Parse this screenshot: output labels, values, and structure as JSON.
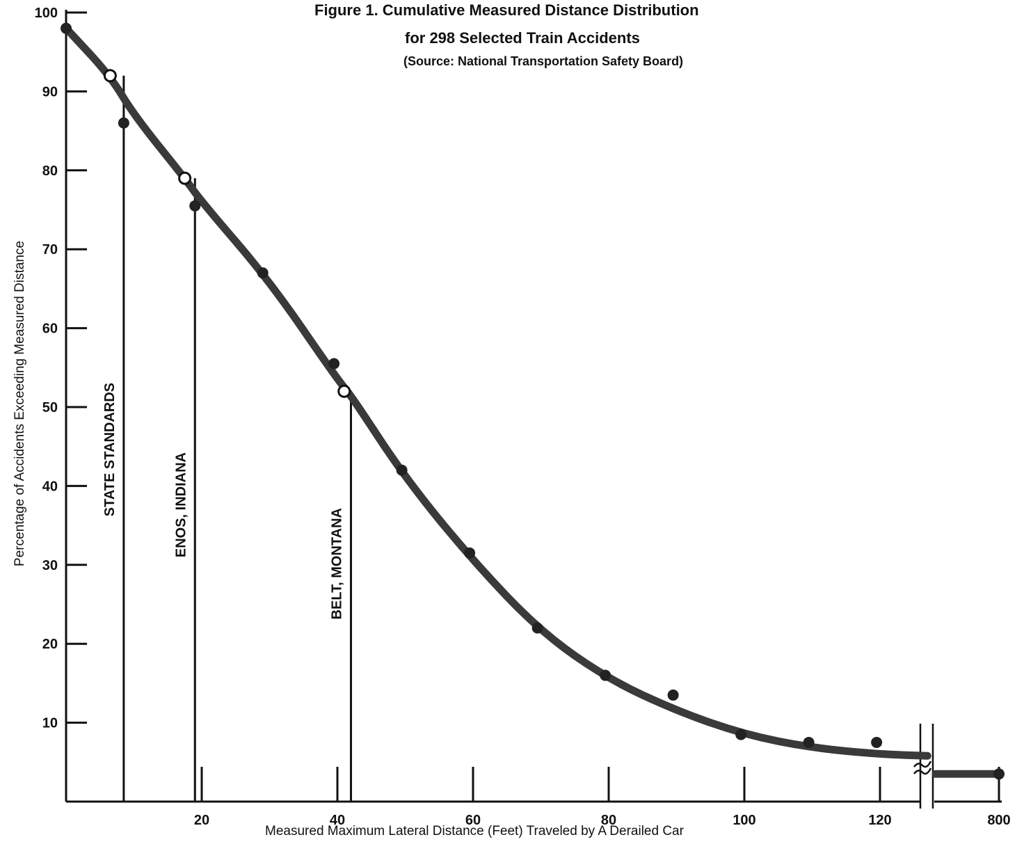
{
  "title": {
    "line1": "Figure 1.  Cumulative Measured Distance Distribution",
    "line2": "for 298 Selected Train Accidents",
    "line3": "(Source:  National Transportation Safety Board)"
  },
  "chart_data": {
    "type": "line",
    "title": "Figure 1.  Cumulative Measured Distance Distribution for 298 Selected Train Accidents",
    "subtitle": "(Source:  National Transportation Safety Board)",
    "xlabel": "Measured Maximum Lateral Distance (Feet) Traveled by A Derailed Car",
    "ylabel": "Percentage of Accidents Exceeding Measured Distance",
    "xlim": [
      0,
      130
    ],
    "ylim": [
      0,
      100
    ],
    "x_axis_break": {
      "after": 127,
      "resumes_at": 800
    },
    "x_ticks": [
      {
        "value": 20,
        "label": "20"
      },
      {
        "value": 40,
        "label": "40"
      },
      {
        "value": 60,
        "label": "60"
      },
      {
        "value": 80,
        "label": "80"
      },
      {
        "value": 100,
        "label": "100"
      },
      {
        "value": 120,
        "label": "120"
      },
      {
        "value": 800,
        "label": "800"
      }
    ],
    "y_ticks": [
      {
        "value": 10,
        "label": "10"
      },
      {
        "value": 20,
        "label": "20"
      },
      {
        "value": 30,
        "label": "30"
      },
      {
        "value": 40,
        "label": "40"
      },
      {
        "value": 50,
        "label": "50"
      },
      {
        "value": 60,
        "label": "60"
      },
      {
        "value": 70,
        "label": "70"
      },
      {
        "value": 80,
        "label": "80"
      },
      {
        "value": 90,
        "label": "90"
      },
      {
        "value": 100,
        "label": "100"
      }
    ],
    "fitted_curve": {
      "x": [
        0,
        6.5,
        10,
        17.5,
        20,
        30,
        40,
        42,
        50,
        60,
        70,
        80,
        90,
        100,
        110,
        120,
        127
      ],
      "y": [
        98,
        92,
        87,
        79,
        76,
        66,
        53.5,
        51.5,
        41,
        30.5,
        21.5,
        15.5,
        11.5,
        8.5,
        6.8,
        6,
        5.8
      ],
      "continuation": {
        "x": 800,
        "y": 3.5
      }
    },
    "data_points": {
      "x": [
        0,
        8.5,
        19,
        29,
        39.5,
        49.5,
        59.5,
        69.5,
        79.5,
        89.5,
        99.5,
        109.5,
        119.5,
        800
      ],
      "y": [
        98,
        86,
        75.5,
        67,
        55.5,
        42,
        31.5,
        22,
        16,
        13.5,
        8.5,
        7.5,
        7.5,
        3.5
      ]
    },
    "highlighted_points": {
      "x": [
        6.5,
        17.5,
        41
      ],
      "y": [
        92,
        79,
        52
      ]
    },
    "reference_lines": [
      {
        "x": 8.5,
        "y": 92,
        "label": "STATE STANDARDS"
      },
      {
        "x": 19,
        "y": 79,
        "label": "ENOS, INDIANA"
      },
      {
        "x": 42,
        "y": 52,
        "label": "BELT, MONTANA"
      }
    ],
    "grid": false,
    "legend": "none"
  }
}
